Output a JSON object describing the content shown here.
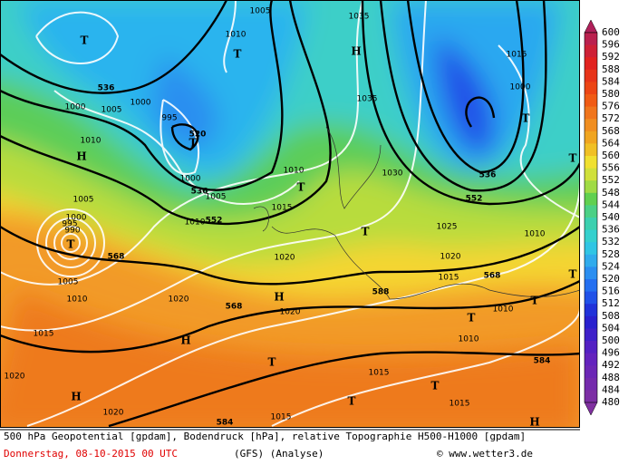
{
  "map": {
    "labels": [
      "T",
      "T",
      "T",
      "520",
      "536",
      "536",
      "552",
      "568",
      "568",
      "588",
      "568",
      "552",
      "536",
      "584",
      "584",
      "H",
      "H",
      "H",
      "H",
      "H",
      "H",
      "T",
      "T",
      "T",
      "T",
      "T",
      "T",
      "T",
      "T",
      "T",
      "T",
      "T",
      "1010",
      "1005",
      "1000",
      "995",
      "1000",
      "1005",
      "1010",
      "1015",
      "1010",
      "1005",
      "1000",
      "995",
      "990",
      "1005",
      "1010",
      "1020",
      "1020",
      "1020",
      "1015",
      "1020",
      "1020",
      "1035",
      "1035",
      "1030",
      "1025",
      "1020",
      "1015",
      "1010",
      "1010",
      "1015",
      "1015",
      "1015",
      "1010",
      "1000",
      "1015",
      "1005",
      "1010",
      "1000"
    ]
  },
  "colorbar": {
    "labels": [
      "600",
      "596",
      "592",
      "588",
      "584",
      "580",
      "576",
      "572",
      "568",
      "564",
      "560",
      "556",
      "552",
      "548",
      "544",
      "540",
      "536",
      "532",
      "528",
      "524",
      "520",
      "516",
      "512",
      "508",
      "504",
      "500",
      "496",
      "492",
      "488",
      "484",
      "480"
    ]
  },
  "footer": {
    "description": "500 hPa Geopotential [gpdam], Bodendruck [hPa], relative Topographie H500-H1000 [gpdam]",
    "date": "Donnerstag, 08-10-2015  00 UTC",
    "model": "(GFS)  (Analyse)",
    "credit": "© www.wetter3.de"
  }
}
